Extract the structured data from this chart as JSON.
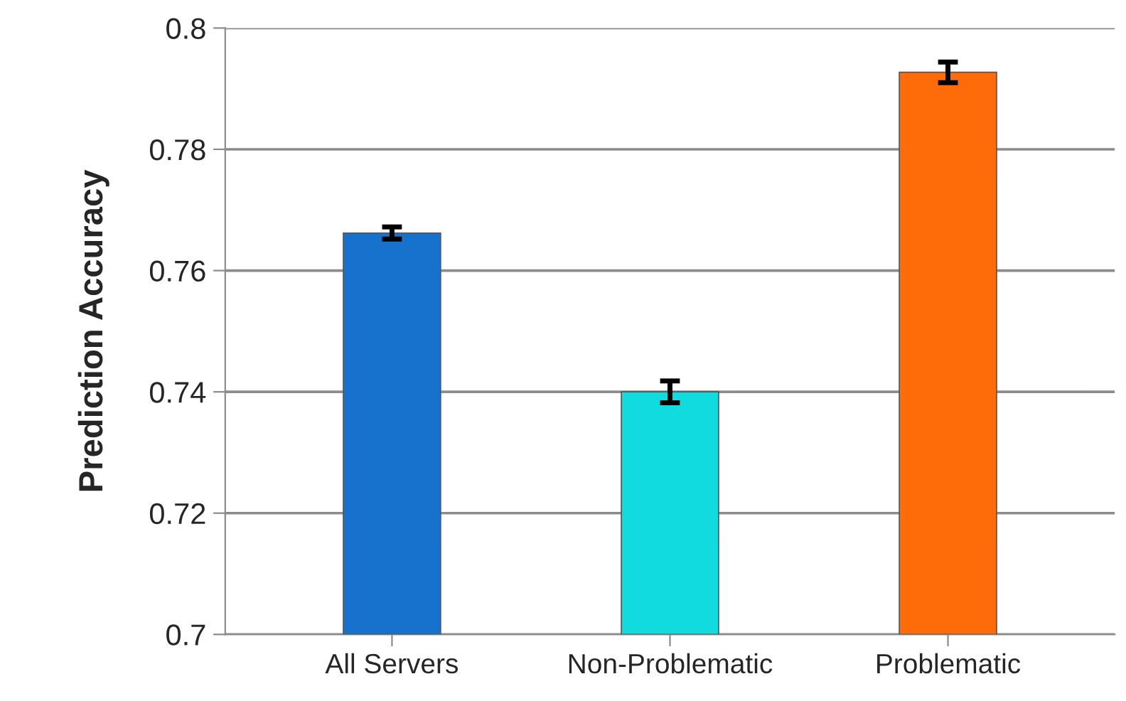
{
  "chart_data": {
    "type": "bar",
    "ylabel": "Prediction Accuracy",
    "categories": [
      "All Servers",
      "Non-Problematic",
      "Problematic"
    ],
    "values": [
      0.7662,
      0.74,
      0.7927
    ],
    "errors": [
      0.001,
      0.0018,
      0.0017
    ],
    "colors": [
      "#1672cc",
      "#12dbe0",
      "#fd6c08"
    ],
    "ylim": [
      0.7,
      0.8
    ],
    "yticks": [
      0.7,
      0.72,
      0.74,
      0.76,
      0.78,
      0.8
    ],
    "grid": "y"
  }
}
